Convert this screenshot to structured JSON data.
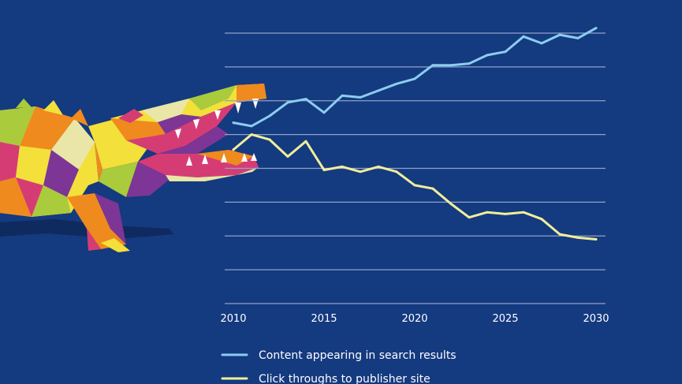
{
  "colors": {
    "background": "#143a80",
    "gridline": "#8fa2c8",
    "series_search": "#8ccdef",
    "series_clicks": "#f1ee9a"
  },
  "illustration": {
    "subject": "geometric low-poly crocodile with open jaws",
    "palette": [
      "#f3e03a",
      "#ef8a1f",
      "#d63c74",
      "#7d3596",
      "#aacb3c",
      "#e9e6a8"
    ]
  },
  "chart_data": {
    "type": "line",
    "title": "",
    "xlabel": "",
    "ylabel": "",
    "xlim": [
      2010,
      2030
    ],
    "ylim": [
      0,
      8
    ],
    "x_ticks": [
      2010,
      2015,
      2020,
      2025,
      2030
    ],
    "grid": true,
    "gridlines_y": [
      0,
      1,
      2,
      3,
      4,
      5,
      6,
      7,
      8
    ],
    "legend_position": "bottom-left",
    "series": [
      {
        "name": "Content appearing in search results",
        "color": "#8ccdef",
        "x": [
          2010,
          2011,
          2012,
          2013,
          2014,
          2015,
          2016,
          2017,
          2018,
          2019,
          2020,
          2021,
          2022,
          2023,
          2024,
          2025,
          2026,
          2027,
          2028,
          2029,
          2030
        ],
        "values": [
          5.35,
          5.25,
          5.55,
          5.95,
          6.05,
          5.65,
          6.15,
          6.1,
          6.3,
          6.5,
          6.65,
          7.05,
          7.05,
          7.1,
          7.35,
          7.45,
          7.9,
          7.7,
          7.95,
          7.85,
          8.15
        ]
      },
      {
        "name": "Click throughs to publisher site",
        "color": "#f1ee9a",
        "x": [
          2010,
          2011,
          2012,
          2013,
          2014,
          2015,
          2016,
          2017,
          2018,
          2019,
          2020,
          2021,
          2022,
          2023,
          2024,
          2025,
          2026,
          2027,
          2028,
          2029,
          2030
        ],
        "values": [
          4.55,
          5.0,
          4.85,
          4.35,
          4.8,
          3.95,
          4.05,
          3.9,
          4.05,
          3.9,
          3.5,
          3.4,
          2.95,
          2.55,
          2.7,
          2.65,
          2.7,
          2.5,
          2.05,
          1.95,
          1.9
        ]
      }
    ]
  }
}
